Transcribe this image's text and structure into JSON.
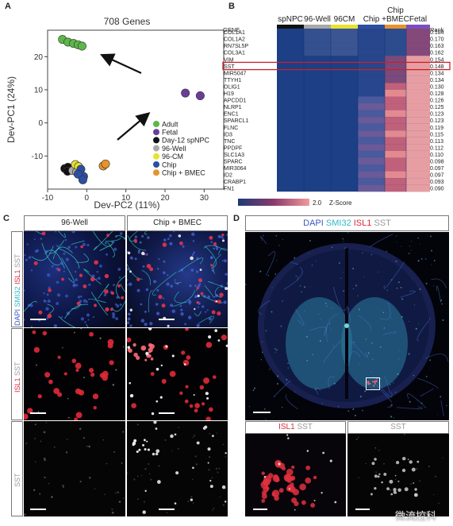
{
  "panel_a": {
    "label": "A",
    "title": "708 Genes",
    "xlabel": "Dev-PC2 (11%)",
    "ylabel": "Dev-PC1 (24%)",
    "xticks": [
      "-10",
      "0",
      "10",
      "20",
      "30"
    ],
    "yticks": [
      "20",
      "10",
      "0",
      "-10"
    ],
    "legend": [
      {
        "label": "Adult",
        "color": "#5cb848"
      },
      {
        "label": "Fetal",
        "color": "#6a3d9a"
      },
      {
        "label": "Day-12 spNPC",
        "color": "#111111"
      },
      {
        "label": "96-Well",
        "color": "#a8a8a8"
      },
      {
        "label": "96-CM",
        "color": "#e8e230"
      },
      {
        "label": "Chip",
        "color": "#2c4fa3"
      },
      {
        "label": "Chip + BMEC",
        "color": "#e8922a"
      }
    ]
  },
  "chart_data": {
    "type": "scatter",
    "title": "708 Genes",
    "xlabel": "Dev-PC2 (11%)",
    "ylabel": "Dev-PC1 (24%)",
    "xlim": [
      -10,
      35
    ],
    "ylim": [
      -20,
      28
    ],
    "series": [
      {
        "name": "Adult",
        "color": "#5cb848",
        "points": [
          [
            -6.2,
            25.2
          ],
          [
            -4.8,
            24.4
          ],
          [
            -3.4,
            24.0
          ],
          [
            -2.2,
            23.6
          ],
          [
            -1.2,
            23.2
          ]
        ]
      },
      {
        "name": "Fetal",
        "color": "#6a3d9a",
        "points": [
          [
            25.2,
            9.0
          ],
          [
            29.0,
            8.2
          ]
        ]
      },
      {
        "name": "Day-12 spNPC",
        "color": "#111111",
        "points": [
          [
            -5.6,
            -13.8
          ],
          [
            -4.8,
            -13.4
          ],
          [
            -4.9,
            -14.6
          ]
        ]
      },
      {
        "name": "96-Well",
        "color": "#a8a8a8",
        "points": [
          [
            -3.6,
            -14.4
          ],
          [
            -2.6,
            -14.8
          ]
        ]
      },
      {
        "name": "96-CM",
        "color": "#e8e230",
        "points": [
          [
            -2.9,
            -12.6
          ],
          [
            -2.1,
            -13.2
          ]
        ]
      },
      {
        "name": "Chip",
        "color": "#2c4fa3",
        "points": [
          [
            -1.5,
            -14.0
          ],
          [
            -0.8,
            -16.2
          ],
          [
            -2.2,
            -15.5
          ],
          [
            -1.0,
            -17.2
          ]
        ]
      },
      {
        "name": "Chip + BMEC",
        "color": "#e8922a",
        "points": [
          [
            4.2,
            -13.0
          ],
          [
            4.8,
            -12.4
          ]
        ]
      }
    ]
  },
  "panel_b": {
    "label": "B",
    "groups": [
      {
        "label": "spNPC",
        "color": "#111111"
      },
      {
        "label": "96-Well",
        "color": "#a8a8a8"
      },
      {
        "label": "96CM",
        "color": "#e8e230"
      },
      {
        "label": "Chip",
        "color": "#2c4fa3"
      },
      {
        "label": "Chip\n+BMEC",
        "color": "#e8922a"
      },
      {
        "label": "Fetal",
        "color": "#7c4fc0"
      }
    ],
    "gene_header": "GENE",
    "rank_header": "Rank",
    "genes": [
      "COL1A1",
      "COL1A2",
      "RN7SL5P",
      "COL3A1",
      "VIM",
      "SST",
      "MIR5047",
      "TTYH1",
      "OLIG1",
      "H19",
      "APCDD1",
      "NLRP1",
      "ENC1",
      "SPARCL1",
      "FLNC",
      "ID3",
      "TNC",
      "PPDPF",
      "SLC1A3",
      "SPARC",
      "MIR3064",
      "ID2",
      "CRABP1",
      "FN1"
    ],
    "ranks": [
      "0.184",
      "0.170",
      "0.163",
      "0.162",
      "0.154",
      "0.148",
      "0.134",
      "0.134",
      "0.130",
      "0.128",
      "0.126",
      "0.125",
      "0.123",
      "0.123",
      "0.119",
      "0.115",
      "0.113",
      "0.112",
      "0.110",
      "0.098",
      "0.097",
      "0.097",
      "0.093",
      "0.090"
    ],
    "highlight_gene": "SST",
    "colorbar_label": "Z-Score",
    "colorbar_max": "2.0"
  },
  "panel_c": {
    "label": "C",
    "col_left": "96-Well",
    "col_right": "Chip + BMEC",
    "row1_labels": [
      {
        "text": "DAPI",
        "color": "#3a58c4"
      },
      {
        "text": "SMI32",
        "color": "#2fb7c8"
      },
      {
        "text": "ISL1",
        "color": "#d92a3a"
      },
      {
        "text": "SST",
        "color": "#9a9a9a"
      }
    ],
    "row2_labels": [
      {
        "text": "ISL1",
        "color": "#d92a3a"
      },
      {
        "text": "SST",
        "color": "#9a9a9a"
      }
    ],
    "row3_labels": [
      {
        "text": "SST",
        "color": "#9a9a9a"
      }
    ]
  },
  "panel_d": {
    "label": "D",
    "header": [
      {
        "text": "DAPI",
        "color": "#3a58c4"
      },
      {
        "text": "SMI32",
        "color": "#2fb7c8"
      },
      {
        "text": "ISL1",
        "color": "#d92a3a"
      },
      {
        "text": "SST",
        "color": "#9a9a9a"
      }
    ],
    "sub_left": [
      {
        "text": "ISL1",
        "color": "#d92a3a"
      },
      {
        "text": "SST",
        "color": "#9a9a9a"
      }
    ],
    "sub_right": [
      {
        "text": "SST",
        "color": "#9a9a9a"
      }
    ]
  },
  "watermark": "微流控科"
}
